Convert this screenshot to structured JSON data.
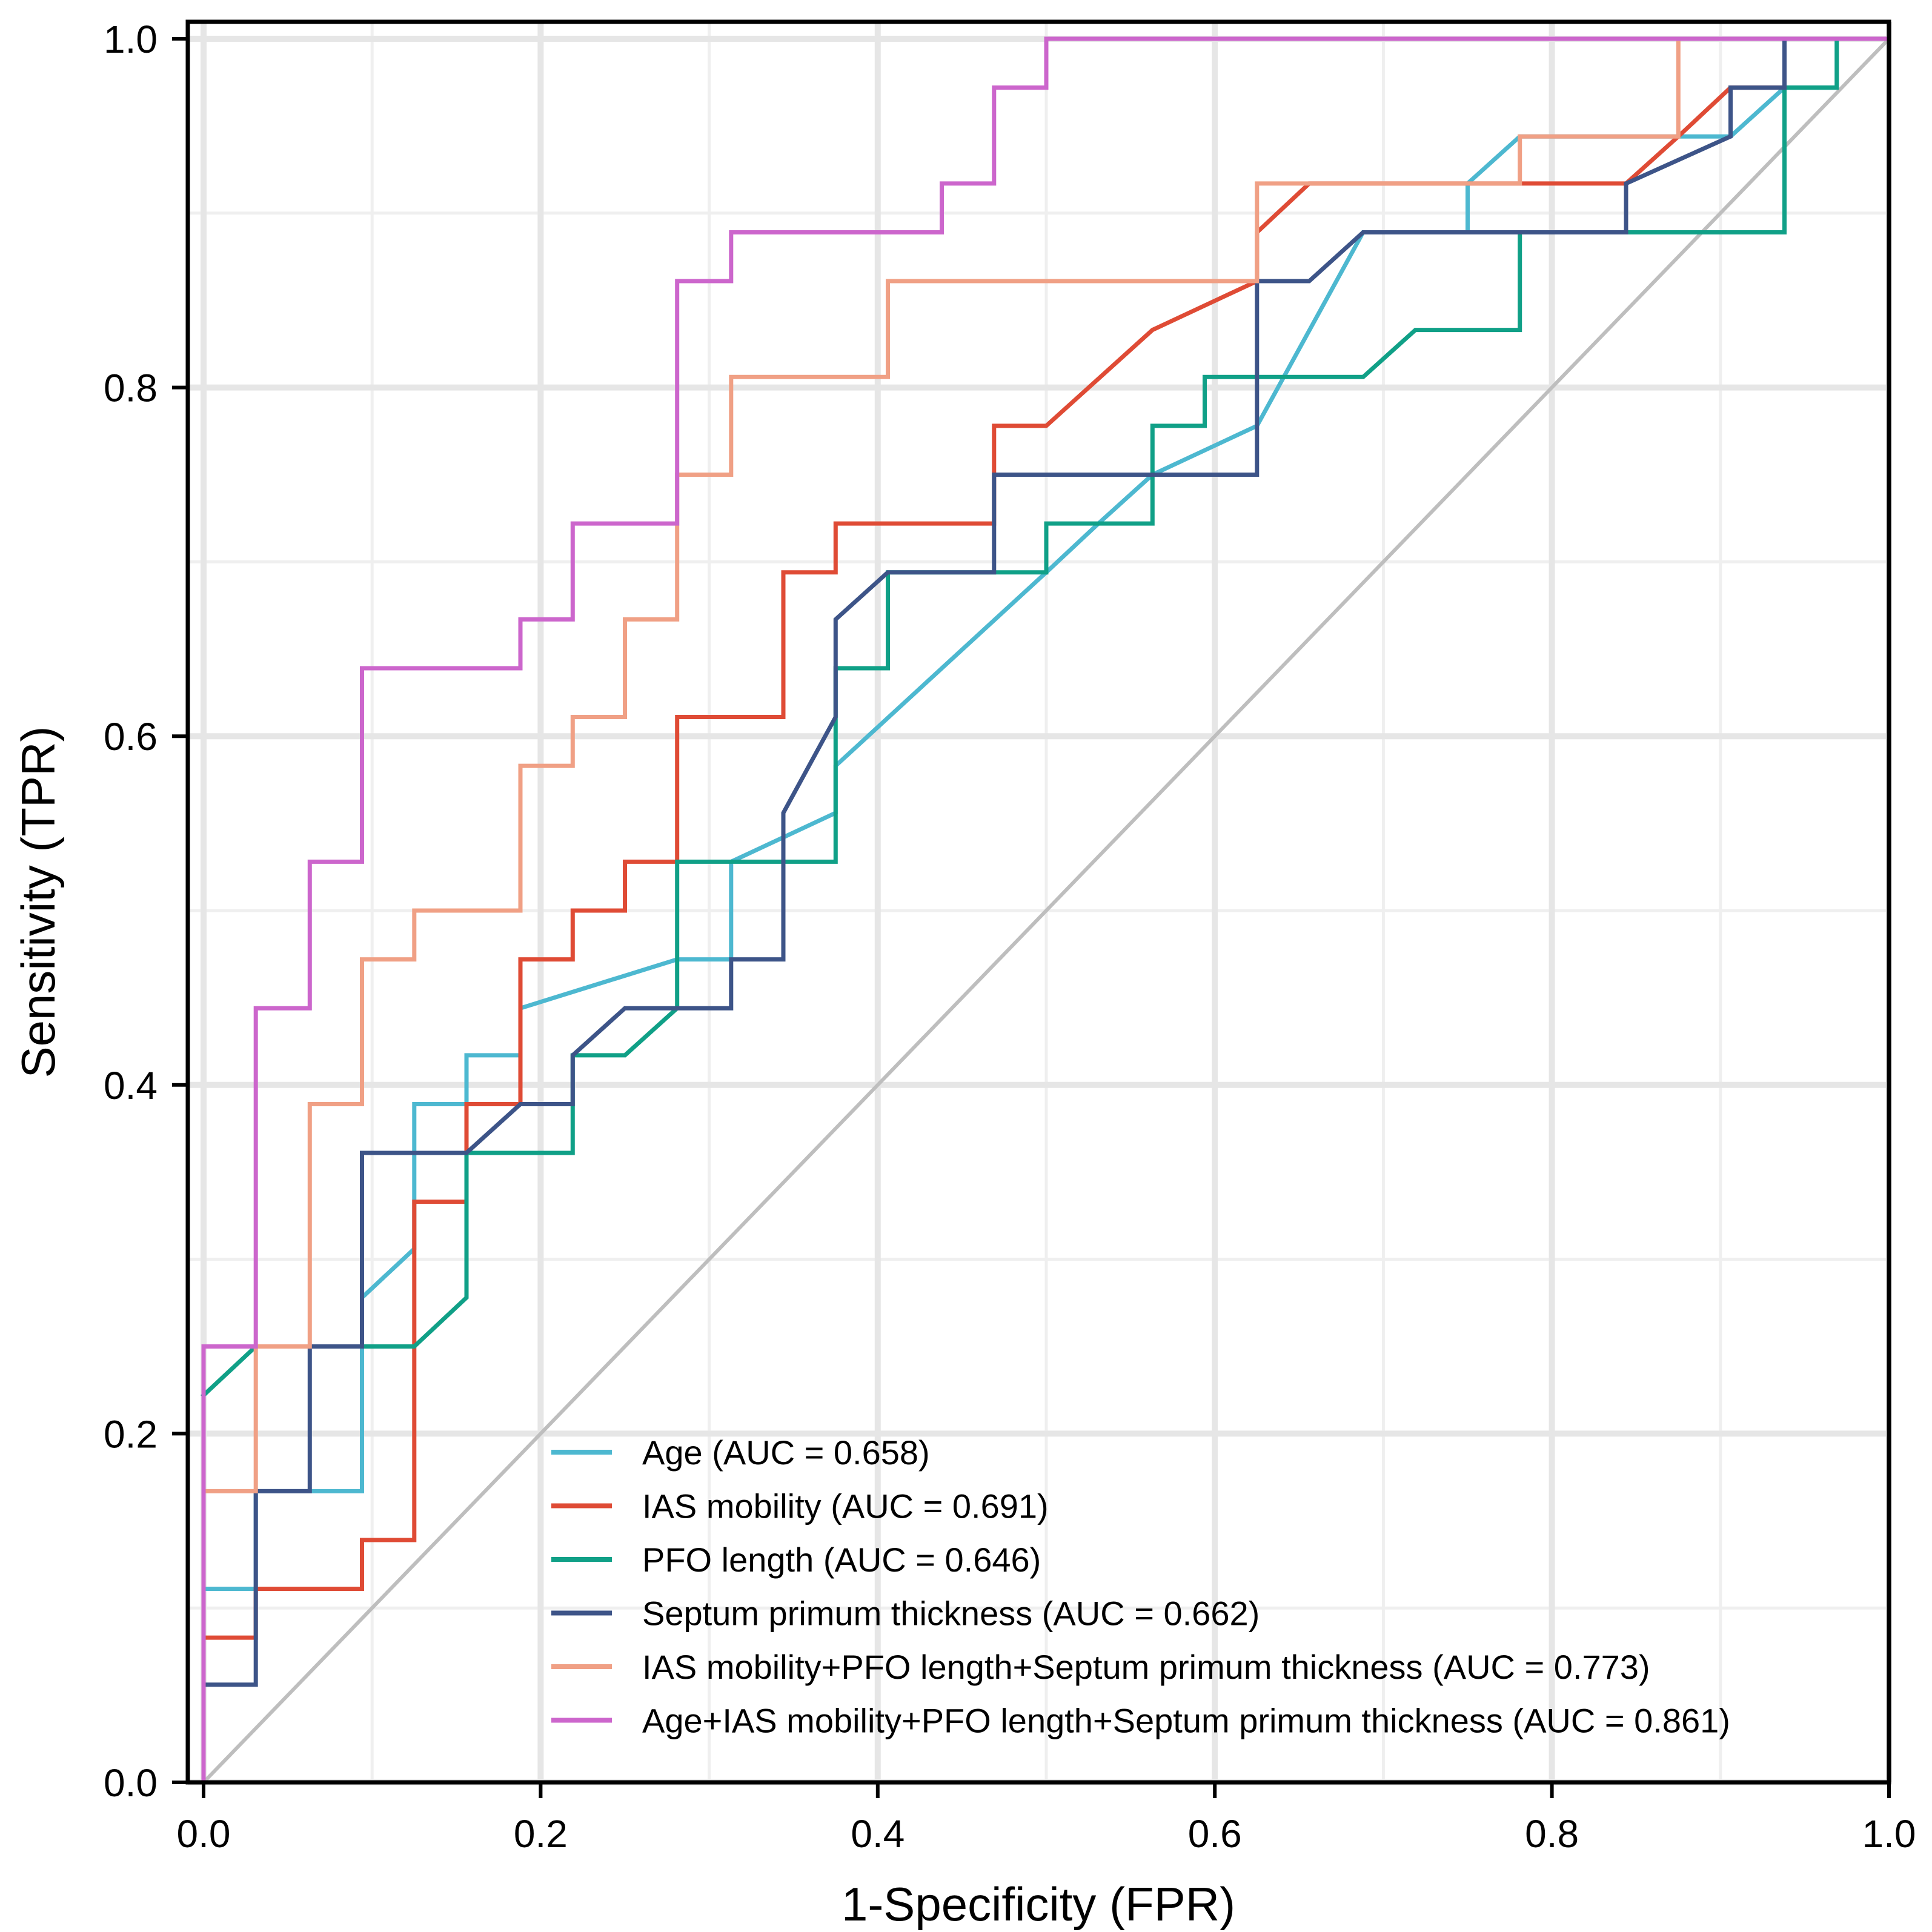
{
  "chart_data": {
    "type": "line",
    "subtype": "roc-curve",
    "title": "",
    "xlabel": "1-Specificity (FPR)",
    "ylabel": "Sensitivity (TPR)",
    "xlim": [
      0,
      1
    ],
    "ylim": [
      0,
      1
    ],
    "xticks": [
      "0.0",
      "0.2",
      "0.4",
      "0.6",
      "0.8",
      "1.0"
    ],
    "yticks": [
      "0.0",
      "0.2",
      "0.4",
      "0.6",
      "0.8",
      "1.0"
    ],
    "grid": true,
    "legend_position": "bottom-right",
    "reference_line": {
      "name": "chance",
      "color": "#bebebe",
      "points": [
        [
          0,
          0
        ],
        [
          1,
          1
        ]
      ]
    },
    "series": [
      {
        "name": "Age (AUC = 0.658)",
        "color": "#4db8d0",
        "points": [
          [
            0,
            0
          ],
          [
            0,
            0.111
          ],
          [
            0.031,
            0.111
          ],
          [
            0.031,
            0.167
          ],
          [
            0.094,
            0.167
          ],
          [
            0.094,
            0.278
          ],
          [
            0.125,
            0.306
          ],
          [
            0.125,
            0.389
          ],
          [
            0.156,
            0.389
          ],
          [
            0.156,
            0.417
          ],
          [
            0.188,
            0.417
          ],
          [
            0.188,
            0.444
          ],
          [
            0.281,
            0.472
          ],
          [
            0.313,
            0.472
          ],
          [
            0.313,
            0.528
          ],
          [
            0.375,
            0.556
          ],
          [
            0.375,
            0.583
          ],
          [
            0.5,
            0.694
          ],
          [
            0.531,
            0.722
          ],
          [
            0.563,
            0.75
          ],
          [
            0.625,
            0.778
          ],
          [
            0.688,
            0.889
          ],
          [
            0.75,
            0.889
          ],
          [
            0.75,
            0.917
          ],
          [
            0.781,
            0.944
          ],
          [
            0.906,
            0.944
          ],
          [
            0.938,
            0.972
          ],
          [
            0.969,
            0.972
          ],
          [
            0.969,
            1
          ],
          [
            1,
            1
          ],
          [
            1,
            0.972
          ]
        ]
      },
      {
        "name": "IAS mobility (AUC = 0.691)",
        "color": "#df4b35",
        "points": [
          [
            0,
            0
          ],
          [
            0,
            0.083
          ],
          [
            0.031,
            0.083
          ],
          [
            0.031,
            0.111
          ],
          [
            0.094,
            0.111
          ],
          [
            0.094,
            0.139
          ],
          [
            0.125,
            0.139
          ],
          [
            0.125,
            0.333
          ],
          [
            0.156,
            0.333
          ],
          [
            0.156,
            0.389
          ],
          [
            0.188,
            0.389
          ],
          [
            0.188,
            0.472
          ],
          [
            0.219,
            0.472
          ],
          [
            0.219,
            0.5
          ],
          [
            0.25,
            0.5
          ],
          [
            0.25,
            0.528
          ],
          [
            0.281,
            0.528
          ],
          [
            0.281,
            0.611
          ],
          [
            0.344,
            0.611
          ],
          [
            0.344,
            0.694
          ],
          [
            0.375,
            0.694
          ],
          [
            0.375,
            0.722
          ],
          [
            0.469,
            0.722
          ],
          [
            0.469,
            0.778
          ],
          [
            0.5,
            0.778
          ],
          [
            0.563,
            0.833
          ],
          [
            0.625,
            0.861
          ],
          [
            0.625,
            0.889
          ],
          [
            0.656,
            0.917
          ],
          [
            0.781,
            0.917
          ],
          [
            0.844,
            0.917
          ],
          [
            0.875,
            0.944
          ],
          [
            0.906,
            0.972
          ],
          [
            0.938,
            0.972
          ],
          [
            0.938,
            1
          ],
          [
            1,
            1
          ]
        ]
      },
      {
        "name": "PFO length (AUC = 0.646)",
        "color": "#10a087",
        "points": [
          [
            0,
            0.222
          ],
          [
            0.031,
            0.25
          ],
          [
            0.125,
            0.25
          ],
          [
            0.156,
            0.278
          ],
          [
            0.156,
            0.361
          ],
          [
            0.219,
            0.361
          ],
          [
            0.219,
            0.417
          ],
          [
            0.25,
            0.417
          ],
          [
            0.281,
            0.444
          ],
          [
            0.281,
            0.528
          ],
          [
            0.375,
            0.528
          ],
          [
            0.375,
            0.639
          ],
          [
            0.406,
            0.639
          ],
          [
            0.406,
            0.694
          ],
          [
            0.469,
            0.694
          ],
          [
            0.5,
            0.694
          ],
          [
            0.5,
            0.722
          ],
          [
            0.563,
            0.722
          ],
          [
            0.563,
            0.778
          ],
          [
            0.594,
            0.778
          ],
          [
            0.594,
            0.806
          ],
          [
            0.688,
            0.806
          ],
          [
            0.719,
            0.833
          ],
          [
            0.781,
            0.833
          ],
          [
            0.781,
            0.889
          ],
          [
            0.938,
            0.889
          ],
          [
            0.938,
            0.972
          ],
          [
            0.969,
            0.972
          ],
          [
            0.969,
            1
          ],
          [
            1,
            1
          ]
        ]
      },
      {
        "name": "Septum primum thickness (AUC = 0.662)",
        "color": "#3d5488",
        "points": [
          [
            0,
            0
          ],
          [
            0,
            0.056
          ],
          [
            0.031,
            0.056
          ],
          [
            0.031,
            0.167
          ],
          [
            0.063,
            0.167
          ],
          [
            0.063,
            0.25
          ],
          [
            0.094,
            0.25
          ],
          [
            0.094,
            0.361
          ],
          [
            0.156,
            0.361
          ],
          [
            0.188,
            0.389
          ],
          [
            0.219,
            0.389
          ],
          [
            0.219,
            0.417
          ],
          [
            0.25,
            0.444
          ],
          [
            0.313,
            0.444
          ],
          [
            0.313,
            0.472
          ],
          [
            0.344,
            0.472
          ],
          [
            0.344,
            0.556
          ],
          [
            0.375,
            0.611
          ],
          [
            0.375,
            0.667
          ],
          [
            0.406,
            0.694
          ],
          [
            0.469,
            0.694
          ],
          [
            0.469,
            0.75
          ],
          [
            0.625,
            0.75
          ],
          [
            0.625,
            0.861
          ],
          [
            0.656,
            0.861
          ],
          [
            0.688,
            0.889
          ],
          [
            0.844,
            0.889
          ],
          [
            0.844,
            0.917
          ],
          [
            0.906,
            0.944
          ],
          [
            0.906,
            0.972
          ],
          [
            0.938,
            0.972
          ],
          [
            0.938,
            1
          ],
          [
            1,
            1
          ]
        ]
      },
      {
        "name": "IAS mobility+PFO length+Septum primum thickness (AUC = 0.773)",
        "color": "#f0a085",
        "points": [
          [
            0,
            0
          ],
          [
            0,
            0.167
          ],
          [
            0.031,
            0.167
          ],
          [
            0.031,
            0.25
          ],
          [
            0.063,
            0.25
          ],
          [
            0.063,
            0.389
          ],
          [
            0.094,
            0.389
          ],
          [
            0.094,
            0.472
          ],
          [
            0.125,
            0.472
          ],
          [
            0.125,
            0.5
          ],
          [
            0.188,
            0.5
          ],
          [
            0.188,
            0.583
          ],
          [
            0.219,
            0.583
          ],
          [
            0.219,
            0.611
          ],
          [
            0.25,
            0.611
          ],
          [
            0.25,
            0.667
          ],
          [
            0.281,
            0.667
          ],
          [
            0.281,
            0.75
          ],
          [
            0.313,
            0.75
          ],
          [
            0.313,
            0.806
          ],
          [
            0.406,
            0.806
          ],
          [
            0.406,
            0.861
          ],
          [
            0.625,
            0.861
          ],
          [
            0.625,
            0.917
          ],
          [
            0.781,
            0.917
          ],
          [
            0.781,
            0.944
          ],
          [
            0.875,
            0.944
          ],
          [
            0.875,
            1
          ],
          [
            1,
            1
          ]
        ]
      },
      {
        "name": "Age+IAS mobility+PFO length+Septum primum thickness (AUC = 0.861)",
        "color": "#cc66cc",
        "points": [
          [
            0,
            0
          ],
          [
            0,
            0.25
          ],
          [
            0.031,
            0.25
          ],
          [
            0.031,
            0.444
          ],
          [
            0.063,
            0.444
          ],
          [
            0.063,
            0.528
          ],
          [
            0.094,
            0.528
          ],
          [
            0.094,
            0.639
          ],
          [
            0.188,
            0.639
          ],
          [
            0.188,
            0.667
          ],
          [
            0.219,
            0.667
          ],
          [
            0.219,
            0.722
          ],
          [
            0.281,
            0.722
          ],
          [
            0.281,
            0.861
          ],
          [
            0.313,
            0.861
          ],
          [
            0.313,
            0.889
          ],
          [
            0.438,
            0.889
          ],
          [
            0.438,
            0.917
          ],
          [
            0.469,
            0.917
          ],
          [
            0.469,
            0.972
          ],
          [
            0.5,
            0.972
          ],
          [
            0.5,
            1
          ],
          [
            1,
            1
          ]
        ]
      }
    ]
  }
}
